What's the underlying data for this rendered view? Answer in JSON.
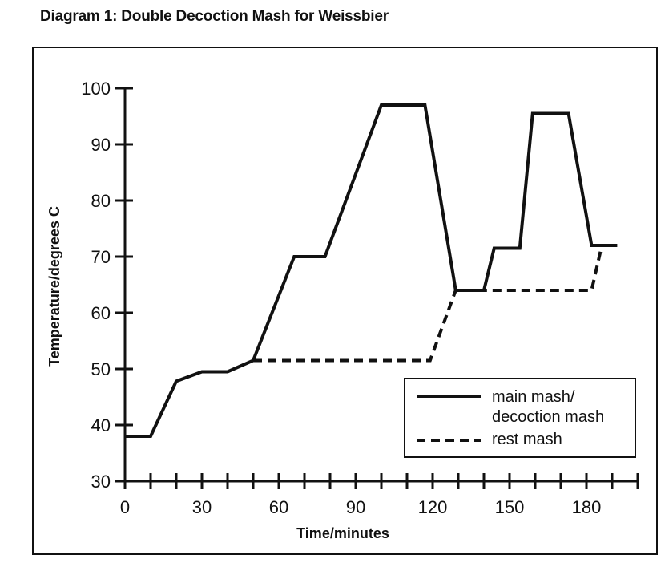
{
  "chart_data": {
    "type": "line",
    "title": "Diagram 1: Double Decoction Mash for Weissbier",
    "xlabel": "Time/minutes",
    "ylabel": "Temperature/degrees C",
    "xlim": [
      0,
      200
    ],
    "ylim": [
      30,
      100
    ],
    "x_tick_labels": [
      0,
      30,
      60,
      90,
      120,
      150,
      180
    ],
    "x_minor_ticks": [
      0,
      10,
      20,
      30,
      40,
      50,
      60,
      70,
      80,
      90,
      100,
      110,
      120,
      130,
      140,
      150,
      160,
      170,
      180,
      190,
      200
    ],
    "y_tick_labels": [
      30,
      40,
      50,
      60,
      70,
      80,
      90,
      100
    ],
    "series": [
      {
        "name": "main mash/ decoction mash",
        "style": "solid",
        "points": [
          [
            0,
            38
          ],
          [
            10,
            38
          ],
          [
            20,
            47.8
          ],
          [
            30,
            49.5
          ],
          [
            40,
            49.5
          ],
          [
            50,
            51.5
          ],
          [
            66,
            70
          ],
          [
            78,
            70
          ],
          [
            100,
            97
          ],
          [
            117,
            97
          ],
          [
            129,
            64
          ],
          [
            140,
            64
          ],
          [
            144,
            71.5
          ],
          [
            154,
            71.5
          ],
          [
            159,
            95.5
          ],
          [
            173,
            95.5
          ],
          [
            182,
            72
          ],
          [
            192,
            72
          ]
        ]
      },
      {
        "name": "rest mash",
        "style": "dashed",
        "points": [
          [
            50,
            51.5
          ],
          [
            119,
            51.5
          ],
          [
            129,
            64
          ],
          [
            140,
            64
          ],
          [
            182,
            64
          ],
          [
            186,
            72
          ]
        ]
      }
    ],
    "legend": {
      "position": "bottom-right",
      "entries": [
        {
          "lines": [
            "main mash/",
            "decoction mash"
          ],
          "style": "solid"
        },
        {
          "lines": [
            "rest mash"
          ],
          "style": "dashed"
        }
      ]
    },
    "colors": {
      "line": "#111111",
      "background": "#ffffff"
    }
  }
}
